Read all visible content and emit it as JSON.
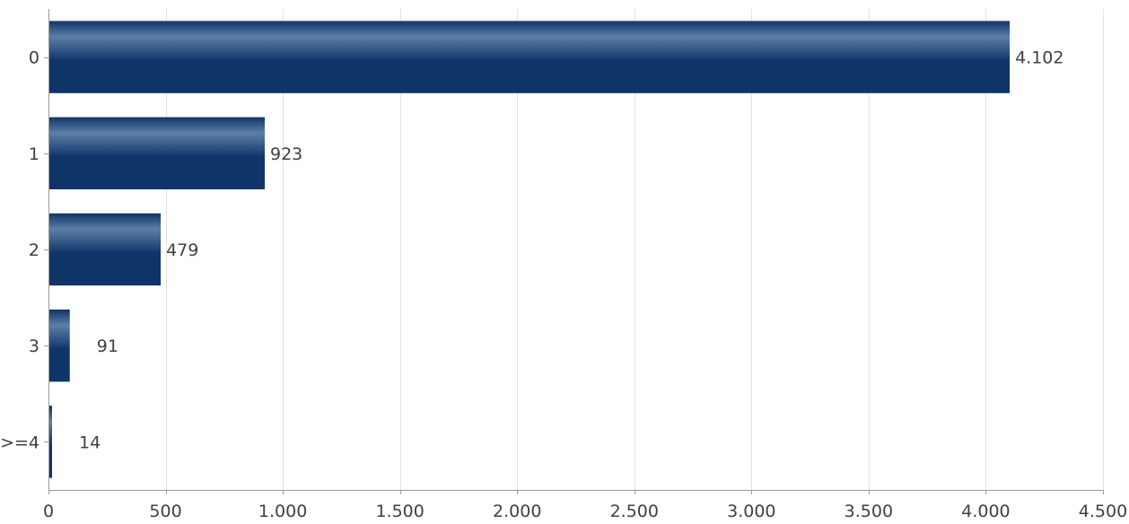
{
  "chart_data": {
    "type": "bar",
    "orientation": "horizontal",
    "title": "",
    "xlabel": "",
    "ylabel": "",
    "categories": [
      "0",
      "1",
      "2",
      "3",
      ">=4"
    ],
    "values": [
      4102,
      923,
      479,
      91,
      14
    ],
    "data_labels": [
      "4.102",
      "923",
      "479",
      "91",
      "14"
    ],
    "xlim": [
      0,
      4500
    ],
    "x_ticks": [
      0,
      500,
      1000,
      1500,
      2000,
      2500,
      3000,
      3500,
      4000,
      4500
    ],
    "x_tick_labels": [
      "0",
      "500",
      "1.000",
      "1.500",
      "2.000",
      "2.500",
      "3.000",
      "3.500",
      "4.000",
      "4.500"
    ],
    "grid": "vertical",
    "legend": "none",
    "colors": {
      "bar_dark": "#0f3468",
      "bar_light": "#5d7fa6",
      "grid": "#e3e3e3",
      "axis": "#9a9a9a",
      "text": "#404040"
    }
  }
}
